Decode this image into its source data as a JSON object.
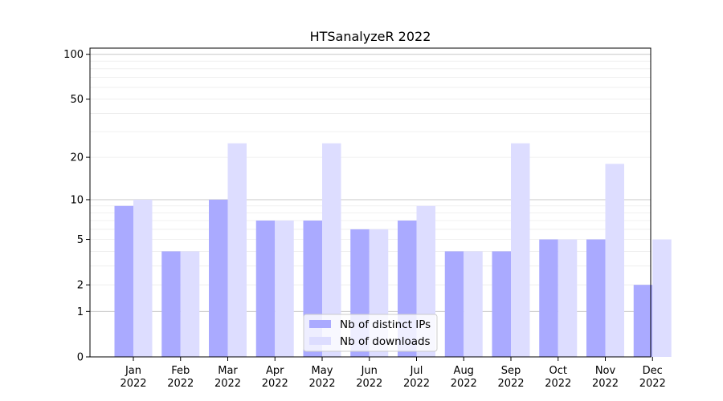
{
  "chart_data": {
    "type": "bar",
    "title": "HTSanalyzeR 2022",
    "xlabel": "",
    "ylabel": "",
    "yscale": "log1p",
    "ylim": [
      0,
      110
    ],
    "yticks": [
      0,
      1,
      2,
      5,
      10,
      20,
      50,
      100
    ],
    "categories": [
      {
        "month": "Jan",
        "year": "2022"
      },
      {
        "month": "Feb",
        "year": "2022"
      },
      {
        "month": "Mar",
        "year": "2022"
      },
      {
        "month": "Apr",
        "year": "2022"
      },
      {
        "month": "May",
        "year": "2022"
      },
      {
        "month": "Jun",
        "year": "2022"
      },
      {
        "month": "Jul",
        "year": "2022"
      },
      {
        "month": "Aug",
        "year": "2022"
      },
      {
        "month": "Sep",
        "year": "2022"
      },
      {
        "month": "Oct",
        "year": "2022"
      },
      {
        "month": "Nov",
        "year": "2022"
      },
      {
        "month": "Dec",
        "year": "2022"
      }
    ],
    "series": [
      {
        "name": "Nb of distinct IPs",
        "color": "#aaaaff",
        "values": [
          9,
          4,
          10,
          7,
          7,
          6,
          7,
          4,
          4,
          5,
          5,
          2
        ]
      },
      {
        "name": "Nb of downloads",
        "color": "#ddddff",
        "values": [
          10,
          4,
          25,
          7,
          25,
          6,
          9,
          4,
          25,
          5,
          18,
          5
        ]
      }
    ],
    "grid": true,
    "legend_position": "bottom-center"
  }
}
